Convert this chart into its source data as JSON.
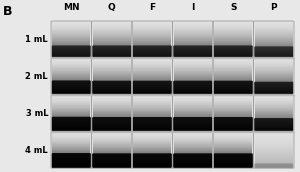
{
  "panel_label": "B",
  "col_labels": [
    "MN",
    "Q",
    "F",
    "I",
    "S",
    "P"
  ],
  "row_labels": [
    "1 mL",
    "2 mL",
    "3 mL",
    "4 mL"
  ],
  "background_color": "#e8e8e8",
  "divider_color": "#bbbbbb",
  "band_intensity": [
    [
      0.75,
      0.75,
      0.75,
      0.75,
      0.75,
      0.68
    ],
    [
      0.9,
      0.88,
      0.88,
      0.88,
      0.88,
      0.8
    ],
    [
      0.95,
      0.93,
      0.93,
      0.93,
      0.93,
      0.85
    ],
    [
      1.0,
      0.98,
      0.98,
      0.98,
      0.98,
      0.22
    ]
  ],
  "figsize": [
    3.0,
    1.72
  ],
  "dpi": 100
}
